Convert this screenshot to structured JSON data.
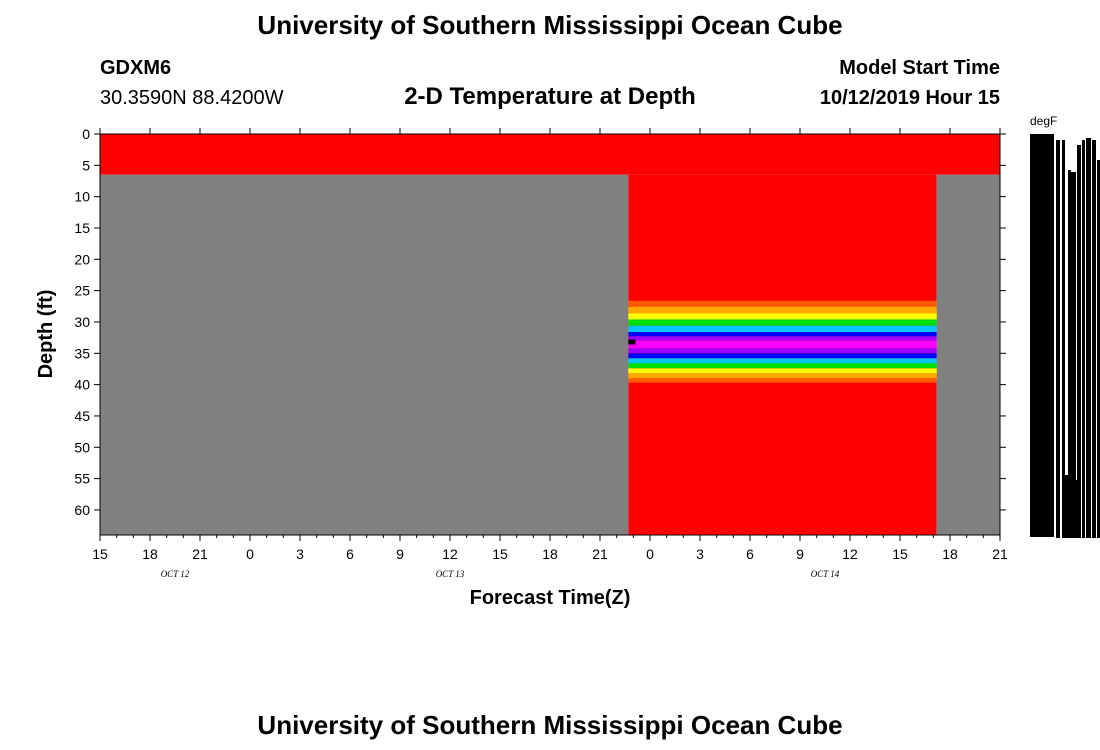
{
  "header": {
    "title_top": "University of Southern Mississippi Ocean Cube",
    "title_bottom": "University of Southern Mississippi Ocean Cube",
    "station": "GDXM6",
    "coords": "30.3590N 88.4200W",
    "subtitle": "2-D Temperature at Depth",
    "start_label": "Model Start Time",
    "start_value": "10/12/2019 Hour 15"
  },
  "chart_data": {
    "type": "heatmap",
    "title": "2-D Temperature at Depth",
    "xlabel": "Forecast Time(Z)",
    "ylabel": "Depth (ft)",
    "colorbar_label": "degF",
    "x_ticks": [
      "15",
      "18",
      "21",
      "0",
      "3",
      "6",
      "9",
      "12",
      "15",
      "18",
      "21",
      "0",
      "3",
      "6",
      "9",
      "12",
      "15",
      "18",
      "21"
    ],
    "x_hours": [
      0,
      3,
      6,
      9,
      12,
      15,
      18,
      21,
      24,
      27,
      30,
      33,
      36,
      39,
      42,
      45,
      48,
      51,
      54
    ],
    "date_labels": [
      {
        "text": "OCT 12",
        "hour": 4.5
      },
      {
        "text": "OCT 13",
        "hour": 21
      },
      {
        "text": "OCT 14",
        "hour": 43.5
      }
    ],
    "y_ticks": [
      0,
      5,
      10,
      15,
      20,
      25,
      30,
      35,
      40,
      45,
      50,
      55,
      60
    ],
    "xlim": [
      0,
      54
    ],
    "ylim": [
      0,
      64
    ],
    "regions": [
      {
        "x0": 0,
        "x1": 54,
        "y0": 0,
        "y1": 6.5,
        "color": "#ff0000"
      },
      {
        "x0": 0,
        "x1": 31.7,
        "y0": 6.5,
        "y1": 64,
        "color": "#808080"
      },
      {
        "x0": 31.7,
        "x1": 50.2,
        "y0": 6.5,
        "y1": 64,
        "color": "#ff0000"
      },
      {
        "x0": 50.2,
        "x1": 54,
        "y0": 6.5,
        "y1": 64,
        "color": "#808080"
      }
    ],
    "band": {
      "x0": 31.7,
      "x1": 50.2,
      "layers": [
        {
          "y0": 26.6,
          "y1": 27.6,
          "color": "#ff5a00"
        },
        {
          "y0": 27.6,
          "y1": 28.6,
          "color": "#ffaa00"
        },
        {
          "y0": 28.6,
          "y1": 29.6,
          "color": "#ffff00"
        },
        {
          "y0": 29.6,
          "y1": 30.6,
          "color": "#00e000"
        },
        {
          "y0": 30.6,
          "y1": 31.6,
          "color": "#00c8ff"
        },
        {
          "y0": 31.6,
          "y1": 32.3,
          "color": "#0000ff"
        },
        {
          "y0": 32.3,
          "y1": 33.0,
          "color": "#a000ff"
        },
        {
          "y0": 33.0,
          "y1": 34.2,
          "color": "#ff00ff"
        },
        {
          "y0": 34.2,
          "y1": 35.0,
          "color": "#a000ff"
        },
        {
          "y0": 35.0,
          "y1": 35.8,
          "color": "#0000ff"
        },
        {
          "y0": 35.8,
          "y1": 36.6,
          "color": "#00c8ff"
        },
        {
          "y0": 36.6,
          "y1": 37.4,
          "color": "#00e000"
        },
        {
          "y0": 37.4,
          "y1": 38.2,
          "color": "#ffff00"
        },
        {
          "y0": 38.2,
          "y1": 39.0,
          "color": "#ffaa00"
        },
        {
          "y0": 39.0,
          "y1": 39.7,
          "color": "#ff5a00"
        }
      ]
    }
  }
}
